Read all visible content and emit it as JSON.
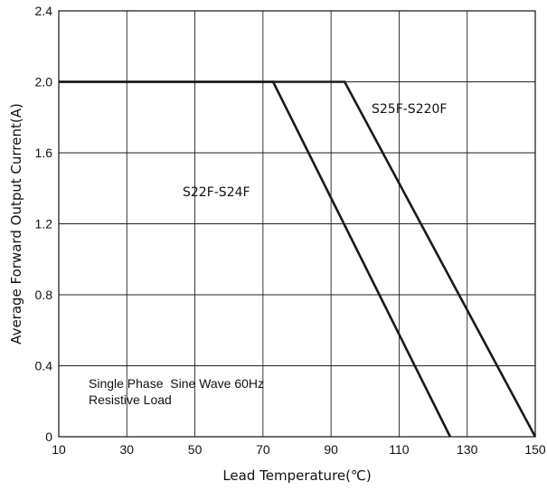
{
  "chart_data": {
    "type": "line",
    "xlabel": "Lead Temperature(℃)",
    "ylabel": "Average Forward Output Current(A)",
    "xlim": [
      10,
      150
    ],
    "ylim": [
      0,
      2.4
    ],
    "x_ticks": [
      "10",
      "30",
      "50",
      "70",
      "90",
      "110",
      "130",
      "150"
    ],
    "y_ticks": [
      "0",
      "0.4",
      "0.8",
      "1.2",
      "1.6",
      "2.0",
      "2.4"
    ],
    "grid": true,
    "series": [
      {
        "name": "S22F-S24F",
        "x": [
          10,
          73,
          125
        ],
        "y": [
          2.0,
          2.0,
          0
        ]
      },
      {
        "name": "S25F-S220F",
        "x": [
          10,
          94,
          150
        ],
        "y": [
          2.0,
          2.0,
          0
        ]
      }
    ],
    "annotations": [
      "Single Phase  Sine Wave 60Hz",
      "Resistive Load"
    ]
  }
}
